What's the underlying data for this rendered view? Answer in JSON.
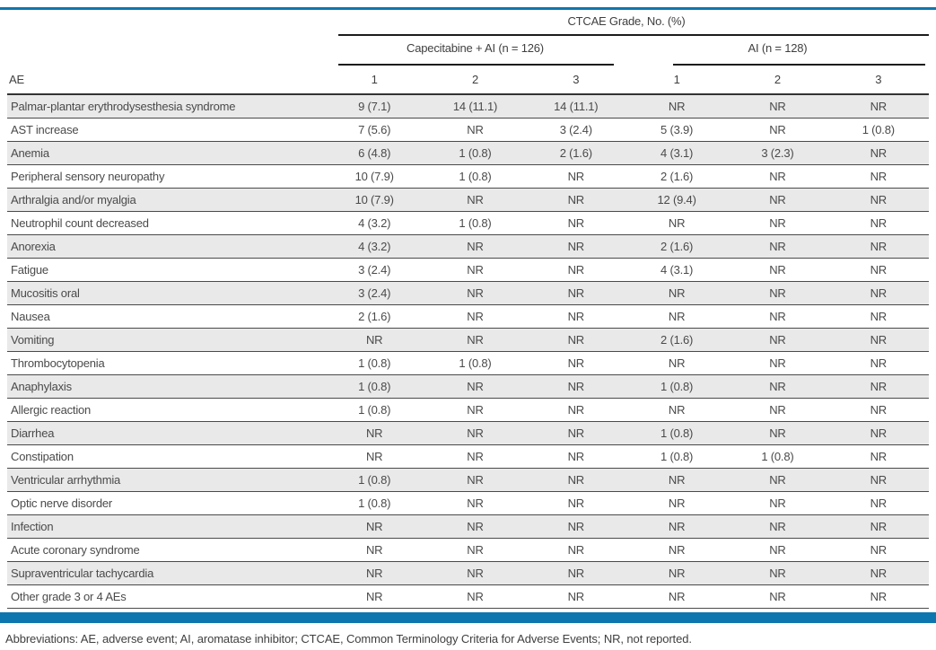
{
  "table": {
    "spanner_title": "CTCAE Grade, No. (%)",
    "group_headers": [
      {
        "label": "Capecitabine + AI (n = 126)"
      },
      {
        "label": "AI (n = 128)"
      }
    ],
    "row_header_label": "AE",
    "grade_columns": [
      "1",
      "2",
      "3",
      "1",
      "2",
      "3"
    ],
    "rows": [
      {
        "ae": "Palmar-plantar erythrodysesthesia syndrome",
        "values": [
          "9 (7.1)",
          "14 (11.1)",
          "14 (11.1)",
          "NR",
          "NR",
          "NR"
        ]
      },
      {
        "ae": "AST increase",
        "values": [
          "7 (5.6)",
          "NR",
          "3 (2.4)",
          "5 (3.9)",
          "NR",
          "1 (0.8)"
        ]
      },
      {
        "ae": "Anemia",
        "values": [
          "6 (4.8)",
          "1 (0.8)",
          "2 (1.6)",
          "4 (3.1)",
          "3 (2.3)",
          "NR"
        ]
      },
      {
        "ae": "Peripheral sensory neuropathy",
        "values": [
          "10 (7.9)",
          "1 (0.8)",
          "NR",
          "2 (1.6)",
          "NR",
          "NR"
        ]
      },
      {
        "ae": "Arthralgia and/or myalgia",
        "values": [
          "10 (7.9)",
          "NR",
          "NR",
          "12 (9.4)",
          "NR",
          "NR"
        ]
      },
      {
        "ae": "Neutrophil count decreased",
        "values": [
          "4 (3.2)",
          "1 (0.8)",
          "NR",
          "NR",
          "NR",
          "NR"
        ]
      },
      {
        "ae": "Anorexia",
        "values": [
          "4 (3.2)",
          "NR",
          "NR",
          "2 (1.6)",
          "NR",
          "NR"
        ]
      },
      {
        "ae": "Fatigue",
        "values": [
          "3 (2.4)",
          "NR",
          "NR",
          "4 (3.1)",
          "NR",
          "NR"
        ]
      },
      {
        "ae": "Mucositis oral",
        "values": [
          "3 (2.4)",
          "NR",
          "NR",
          "NR",
          "NR",
          "NR"
        ]
      },
      {
        "ae": "Nausea",
        "values": [
          "2 (1.6)",
          "NR",
          "NR",
          "NR",
          "NR",
          "NR"
        ]
      },
      {
        "ae": "Vomiting",
        "values": [
          "NR",
          "NR",
          "NR",
          "2 (1.6)",
          "NR",
          "NR"
        ]
      },
      {
        "ae": "Thrombocytopenia",
        "values": [
          "1 (0.8)",
          "1 (0.8)",
          "NR",
          "NR",
          "NR",
          "NR"
        ]
      },
      {
        "ae": "Anaphylaxis",
        "values": [
          "1 (0.8)",
          "NR",
          "NR",
          "1 (0.8)",
          "NR",
          "NR"
        ]
      },
      {
        "ae": "Allergic reaction",
        "values": [
          "1 (0.8)",
          "NR",
          "NR",
          "NR",
          "NR",
          "NR"
        ]
      },
      {
        "ae": "Diarrhea",
        "values": [
          "NR",
          "NR",
          "NR",
          "1 (0.8)",
          "NR",
          "NR"
        ]
      },
      {
        "ae": "Constipation",
        "values": [
          "NR",
          "NR",
          "NR",
          "1 (0.8)",
          "1 (0.8)",
          "NR"
        ]
      },
      {
        "ae": "Ventricular arrhythmia",
        "values": [
          "1 (0.8)",
          "NR",
          "NR",
          "NR",
          "NR",
          "NR"
        ]
      },
      {
        "ae": "Optic nerve disorder",
        "values": [
          "1 (0.8)",
          "NR",
          "NR",
          "NR",
          "NR",
          "NR"
        ]
      },
      {
        "ae": "Infection",
        "values": [
          "NR",
          "NR",
          "NR",
          "NR",
          "NR",
          "NR"
        ]
      },
      {
        "ae": "Acute coronary syndrome",
        "values": [
          "NR",
          "NR",
          "NR",
          "NR",
          "NR",
          "NR"
        ]
      },
      {
        "ae": "Supraventricular tachycardia",
        "values": [
          "NR",
          "NR",
          "NR",
          "NR",
          "NR",
          "NR"
        ]
      },
      {
        "ae": "Other grade 3 or 4 AEs",
        "values": [
          "NR",
          "NR",
          "NR",
          "NR",
          "NR",
          "NR"
        ]
      }
    ]
  },
  "footnote": "Abbreviations: AE, adverse event; AI, aromatase inhibitor; CTCAE, Common Terminology Criteria for Adverse Events; NR, not reported.",
  "colors": {
    "accent_blue": "#0e76ae",
    "stripe_gray": "#e9e9e9"
  }
}
